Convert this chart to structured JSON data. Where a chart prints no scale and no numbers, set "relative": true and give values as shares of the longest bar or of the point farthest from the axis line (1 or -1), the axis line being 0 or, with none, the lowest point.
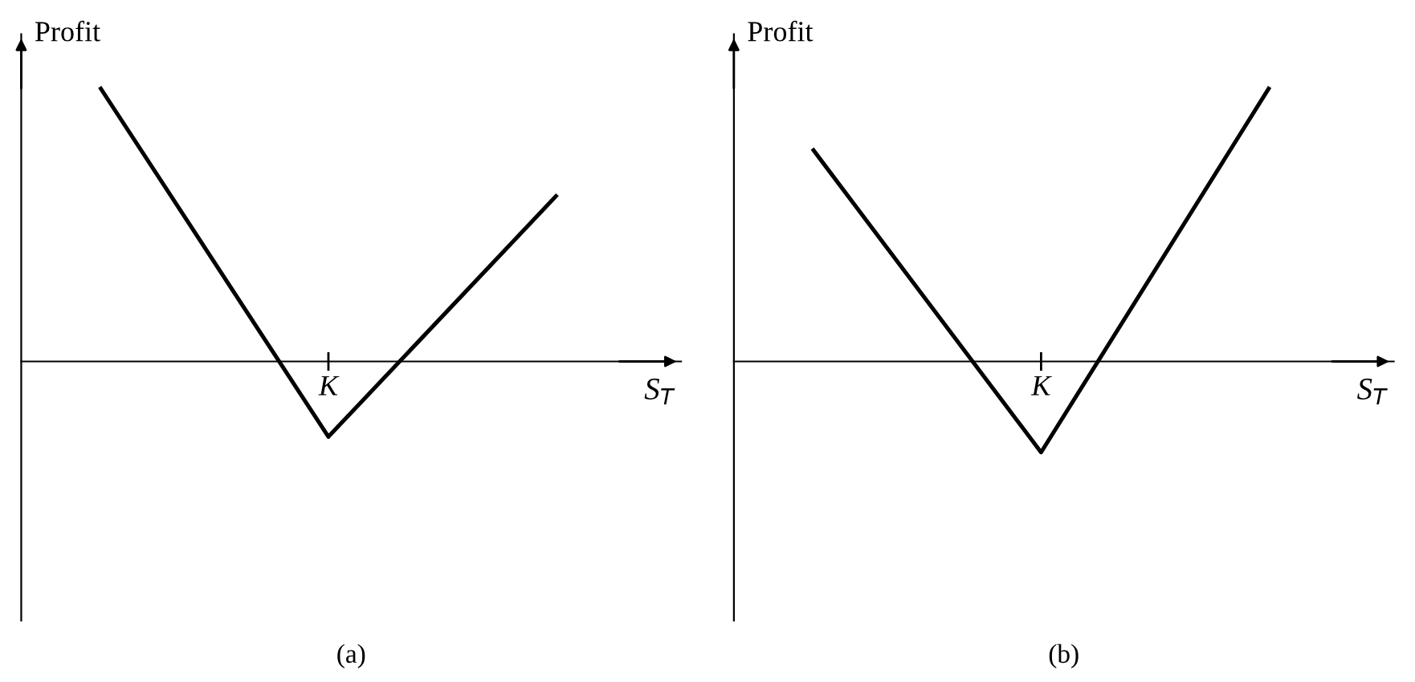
{
  "chart_data": [
    {
      "type": "line",
      "title": "(a)",
      "ylabel": "Profit",
      "xlabel": "S$_{T}$",
      "relative": true,
      "categories": [
        null,
        null,
        null
      ],
      "annotations": [
        "K"
      ],
      "series": [
        {
          "color": "#000000",
          "values": [
            1,
            -0.276,
            0.606
          ]
        }
      ]
    },
    {
      "type": "line",
      "title": "(b)",
      "ylabel": "Profit",
      "xlabel": "S$_{T}$",
      "relative": true,
      "categories": [
        null,
        null,
        null
      ],
      "annotations": [
        "K"
      ],
      "series": [
        {
          "color": "#000000",
          "values": [
            0.774,
            -0.333,
            1
          ]
        }
      ]
    }
  ]
}
